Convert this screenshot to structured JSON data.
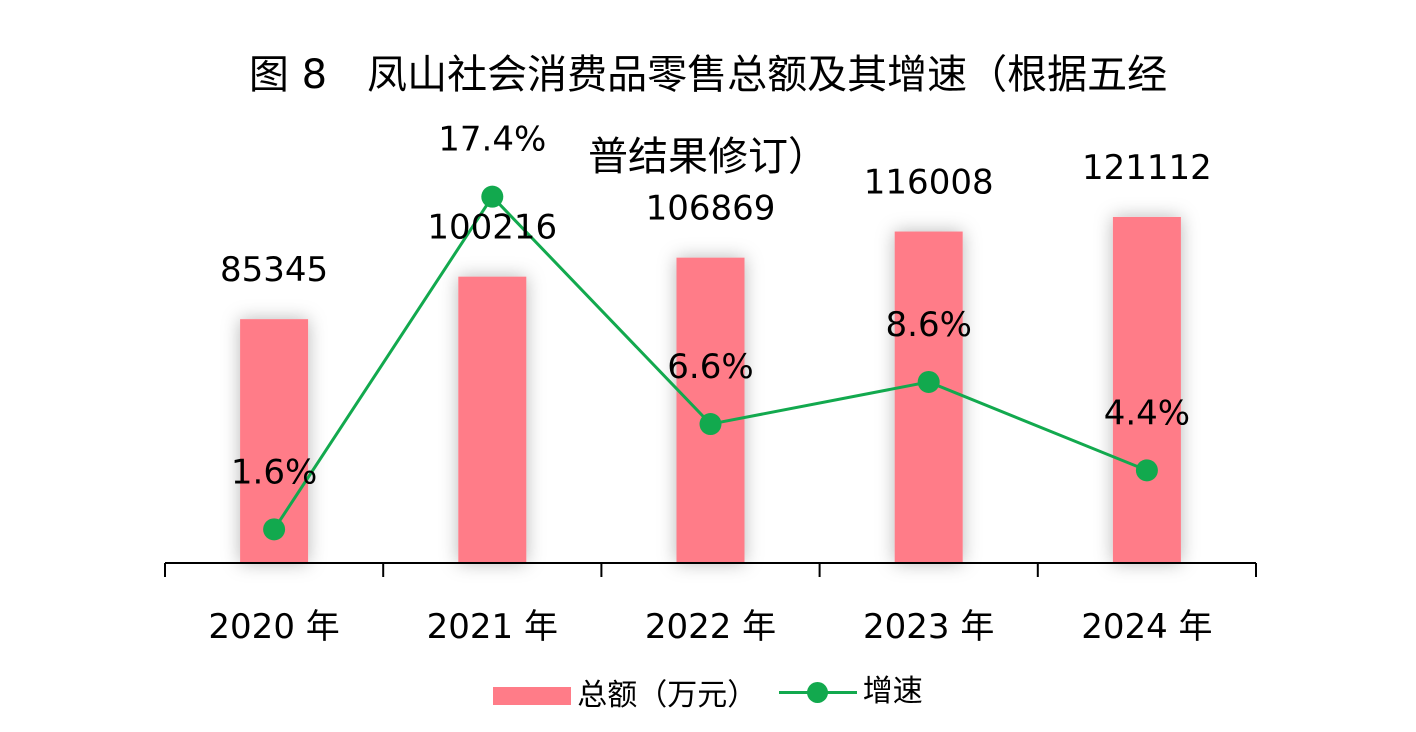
{
  "chart_data": {
    "type": "bar",
    "title_line1": "图 8　凤山社会消费品零售总额及其增速（根据五经",
    "title_line2": "普结果修订）",
    "categories": [
      "2020 年",
      "2021 年",
      "2022 年",
      "2023 年",
      "2024 年"
    ],
    "series": [
      {
        "name": "总额（万元）",
        "type": "bar",
        "values": [
          85345,
          100216,
          106869,
          116008,
          121112
        ],
        "labels": [
          "85345",
          "100216",
          "106869",
          "116008",
          "121112"
        ],
        "color": "#FF7C88"
      },
      {
        "name": "增速",
        "type": "line",
        "values": [
          1.6,
          17.4,
          6.6,
          8.6,
          4.4
        ],
        "labels": [
          "1.6%",
          "17.4%",
          "6.6%",
          "8.6%",
          "4.4%"
        ],
        "color": "#12A94E"
      }
    ],
    "y_primary_range": [
      0,
      140000
    ],
    "y_secondary_range": [
      0,
      19
    ],
    "grid": false,
    "legend_position": "bottom"
  }
}
